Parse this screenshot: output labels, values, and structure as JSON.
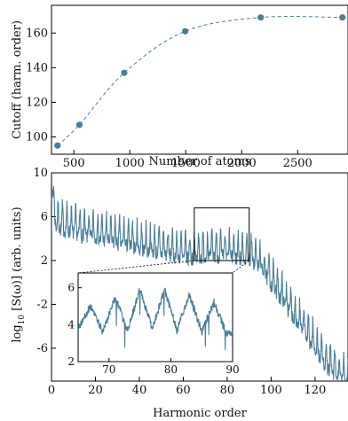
{
  "colors": {
    "series": "#4a7e98",
    "axis": "#000000"
  },
  "chart_data": [
    {
      "type": "line",
      "xlabel": "Number of atoms",
      "ylabel": "Cutoff (harm. order)",
      "xlim": [
        300,
        2950
      ],
      "ylim": [
        90,
        176
      ],
      "xticks": [
        500,
        1000,
        1500,
        2000,
        2500
      ],
      "yticks": [
        100,
        120,
        140,
        160
      ],
      "line_style": "dashed",
      "markers": "filled-circle",
      "series": [
        {
          "x": [
            354,
            550,
            950,
            1495,
            2170,
            2900
          ],
          "y": [
            95,
            107,
            137,
            161,
            169,
            169
          ]
        }
      ]
    },
    {
      "type": "line",
      "xlabel": "Harmonic order",
      "ylabel": "log10 [S(ω)] (arb. units)",
      "ylabel_parts": {
        "pre": "log",
        "sub": "10",
        "post": " [S(ω)]  (arb. units)"
      },
      "xlim": [
        0,
        135
      ],
      "ylim": [
        -9,
        10
      ],
      "xticks": [
        0,
        20,
        40,
        60,
        80,
        100,
        120
      ],
      "yticks": [
        10,
        6,
        2,
        -2,
        -6
      ],
      "series": [
        {
          "x": [
            0,
            5,
            10,
            15,
            20,
            25,
            30,
            35,
            40,
            45,
            50,
            55,
            60,
            65,
            70,
            75,
            80,
            85,
            90,
            95,
            100,
            105,
            110,
            115,
            120,
            125,
            130,
            135
          ],
          "y": [
            6.5,
            6.0,
            5.7,
            5.4,
            5.2,
            5.0,
            4.7,
            4.5,
            4.2,
            4.0,
            3.8,
            3.6,
            3.4,
            3.3,
            3.5,
            3.6,
            3.5,
            3.4,
            3.3,
            2.5,
            1.0,
            -0.5,
            -2.0,
            -3.5,
            -5.0,
            -6.5,
            -7.5,
            -8.0
          ]
        }
      ],
      "zoom_box": {
        "x": [
          65,
          90
        ],
        "y": [
          2,
          6.8
        ]
      }
    },
    {
      "type": "line",
      "role": "inset",
      "xlim": [
        65,
        90
      ],
      "ylim": [
        2,
        6.8
      ],
      "xticks": [
        70,
        80,
        90
      ],
      "yticks": [
        2,
        4,
        6
      ],
      "series": [
        {
          "x": [
            65,
            67,
            69,
            71,
            73,
            75,
            77,
            79,
            81,
            83,
            85,
            87,
            89,
            90
          ],
          "y": [
            3.8,
            5.0,
            3.6,
            5.5,
            3.7,
            5.9,
            3.8,
            5.9,
            3.7,
            5.6,
            3.6,
            5.2,
            3.5,
            3.5
          ]
        }
      ]
    }
  ]
}
